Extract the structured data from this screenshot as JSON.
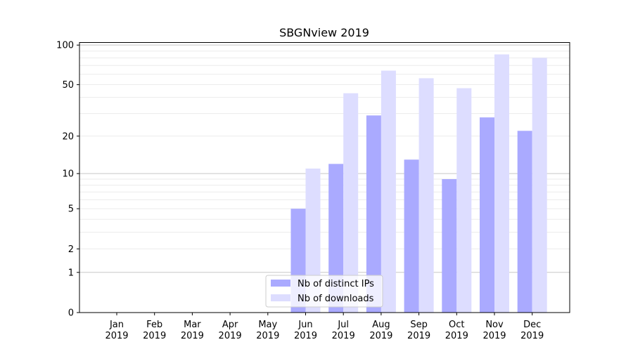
{
  "chart_data": {
    "type": "bar",
    "title": "SBGNview 2019",
    "xlabel": "",
    "ylabel": "",
    "yscale": "log(1+y)",
    "ylim": [
      0,
      105
    ],
    "yticks": [
      0,
      1,
      2,
      5,
      10,
      20,
      50,
      100
    ],
    "ytick_labels": [
      "0",
      "1",
      "2",
      "5",
      "10",
      "20",
      "50",
      "100"
    ],
    "categories": [
      "Jan\n2019",
      "Feb\n2019",
      "Mar\n2019",
      "Apr\n2019",
      "May\n2019",
      "Jun\n2019",
      "Jul\n2019",
      "Aug\n2019",
      "Sep\n2019",
      "Oct\n2019",
      "Nov\n2019",
      "Dec\n2019"
    ],
    "series": [
      {
        "name": "Nb of distinct IPs",
        "color": "#aaaaff",
        "values": [
          0,
          0,
          0,
          0,
          0,
          5,
          12,
          29,
          13,
          9,
          28,
          22
        ]
      },
      {
        "name": "Nb of downloads",
        "color": "#ddddff",
        "values": [
          0,
          0,
          0,
          0,
          0,
          11,
          43,
          64,
          56,
          47,
          85,
          80
        ]
      }
    ],
    "grid": true,
    "legend": "bottom-center"
  }
}
